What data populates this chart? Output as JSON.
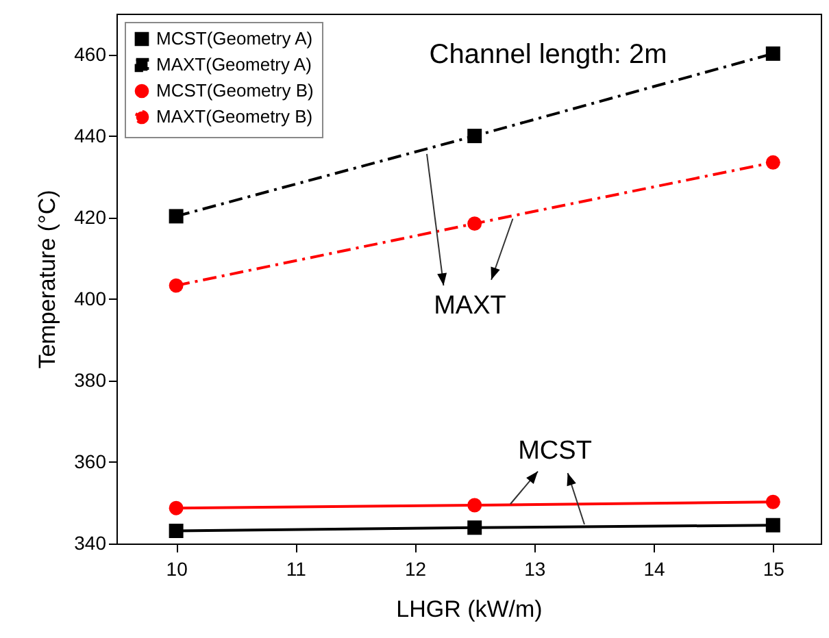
{
  "chart_data": {
    "type": "line",
    "xlabel": "LHGR (kW/m)",
    "ylabel": "Temperature (°C)",
    "x": [
      10,
      12.5,
      15
    ],
    "series": [
      {
        "name": "MCST(Geometry A)",
        "color": "#000000",
        "marker": "square",
        "line_style": "solid",
        "values": [
          343.1,
          343.9,
          344.5
        ]
      },
      {
        "name": "MAXT(Geometry A)",
        "color": "#000000",
        "marker": "square",
        "line_style": "dashdot",
        "values": [
          420.3,
          440,
          460.2
        ]
      },
      {
        "name": "MCST(Geometry B)",
        "color": "#ff0000",
        "marker": "circle",
        "line_style": "solid",
        "values": [
          348.7,
          349.4,
          350.2
        ]
      },
      {
        "name": "MAXT(Geometry B)",
        "color": "#ff0000",
        "marker": "circle",
        "line_style": "dashdot",
        "values": [
          403.3,
          418.5,
          433.5
        ]
      }
    ],
    "xlim": [
      9.5,
      15.4
    ],
    "xticks": [
      10,
      11,
      12,
      13,
      14,
      15
    ],
    "ylim": [
      340,
      470
    ],
    "yticks": [
      340,
      360,
      380,
      400,
      420,
      440,
      460
    ],
    "annotations": [
      "Channel length: 2m",
      {
        "text": "MAXT",
        "x": 12.1,
        "y": 435.6
      },
      {
        "text": "MCST",
        "x": 12.8,
        "y": 349.7
      }
    ],
    "grid": false,
    "legend": "top left"
  }
}
